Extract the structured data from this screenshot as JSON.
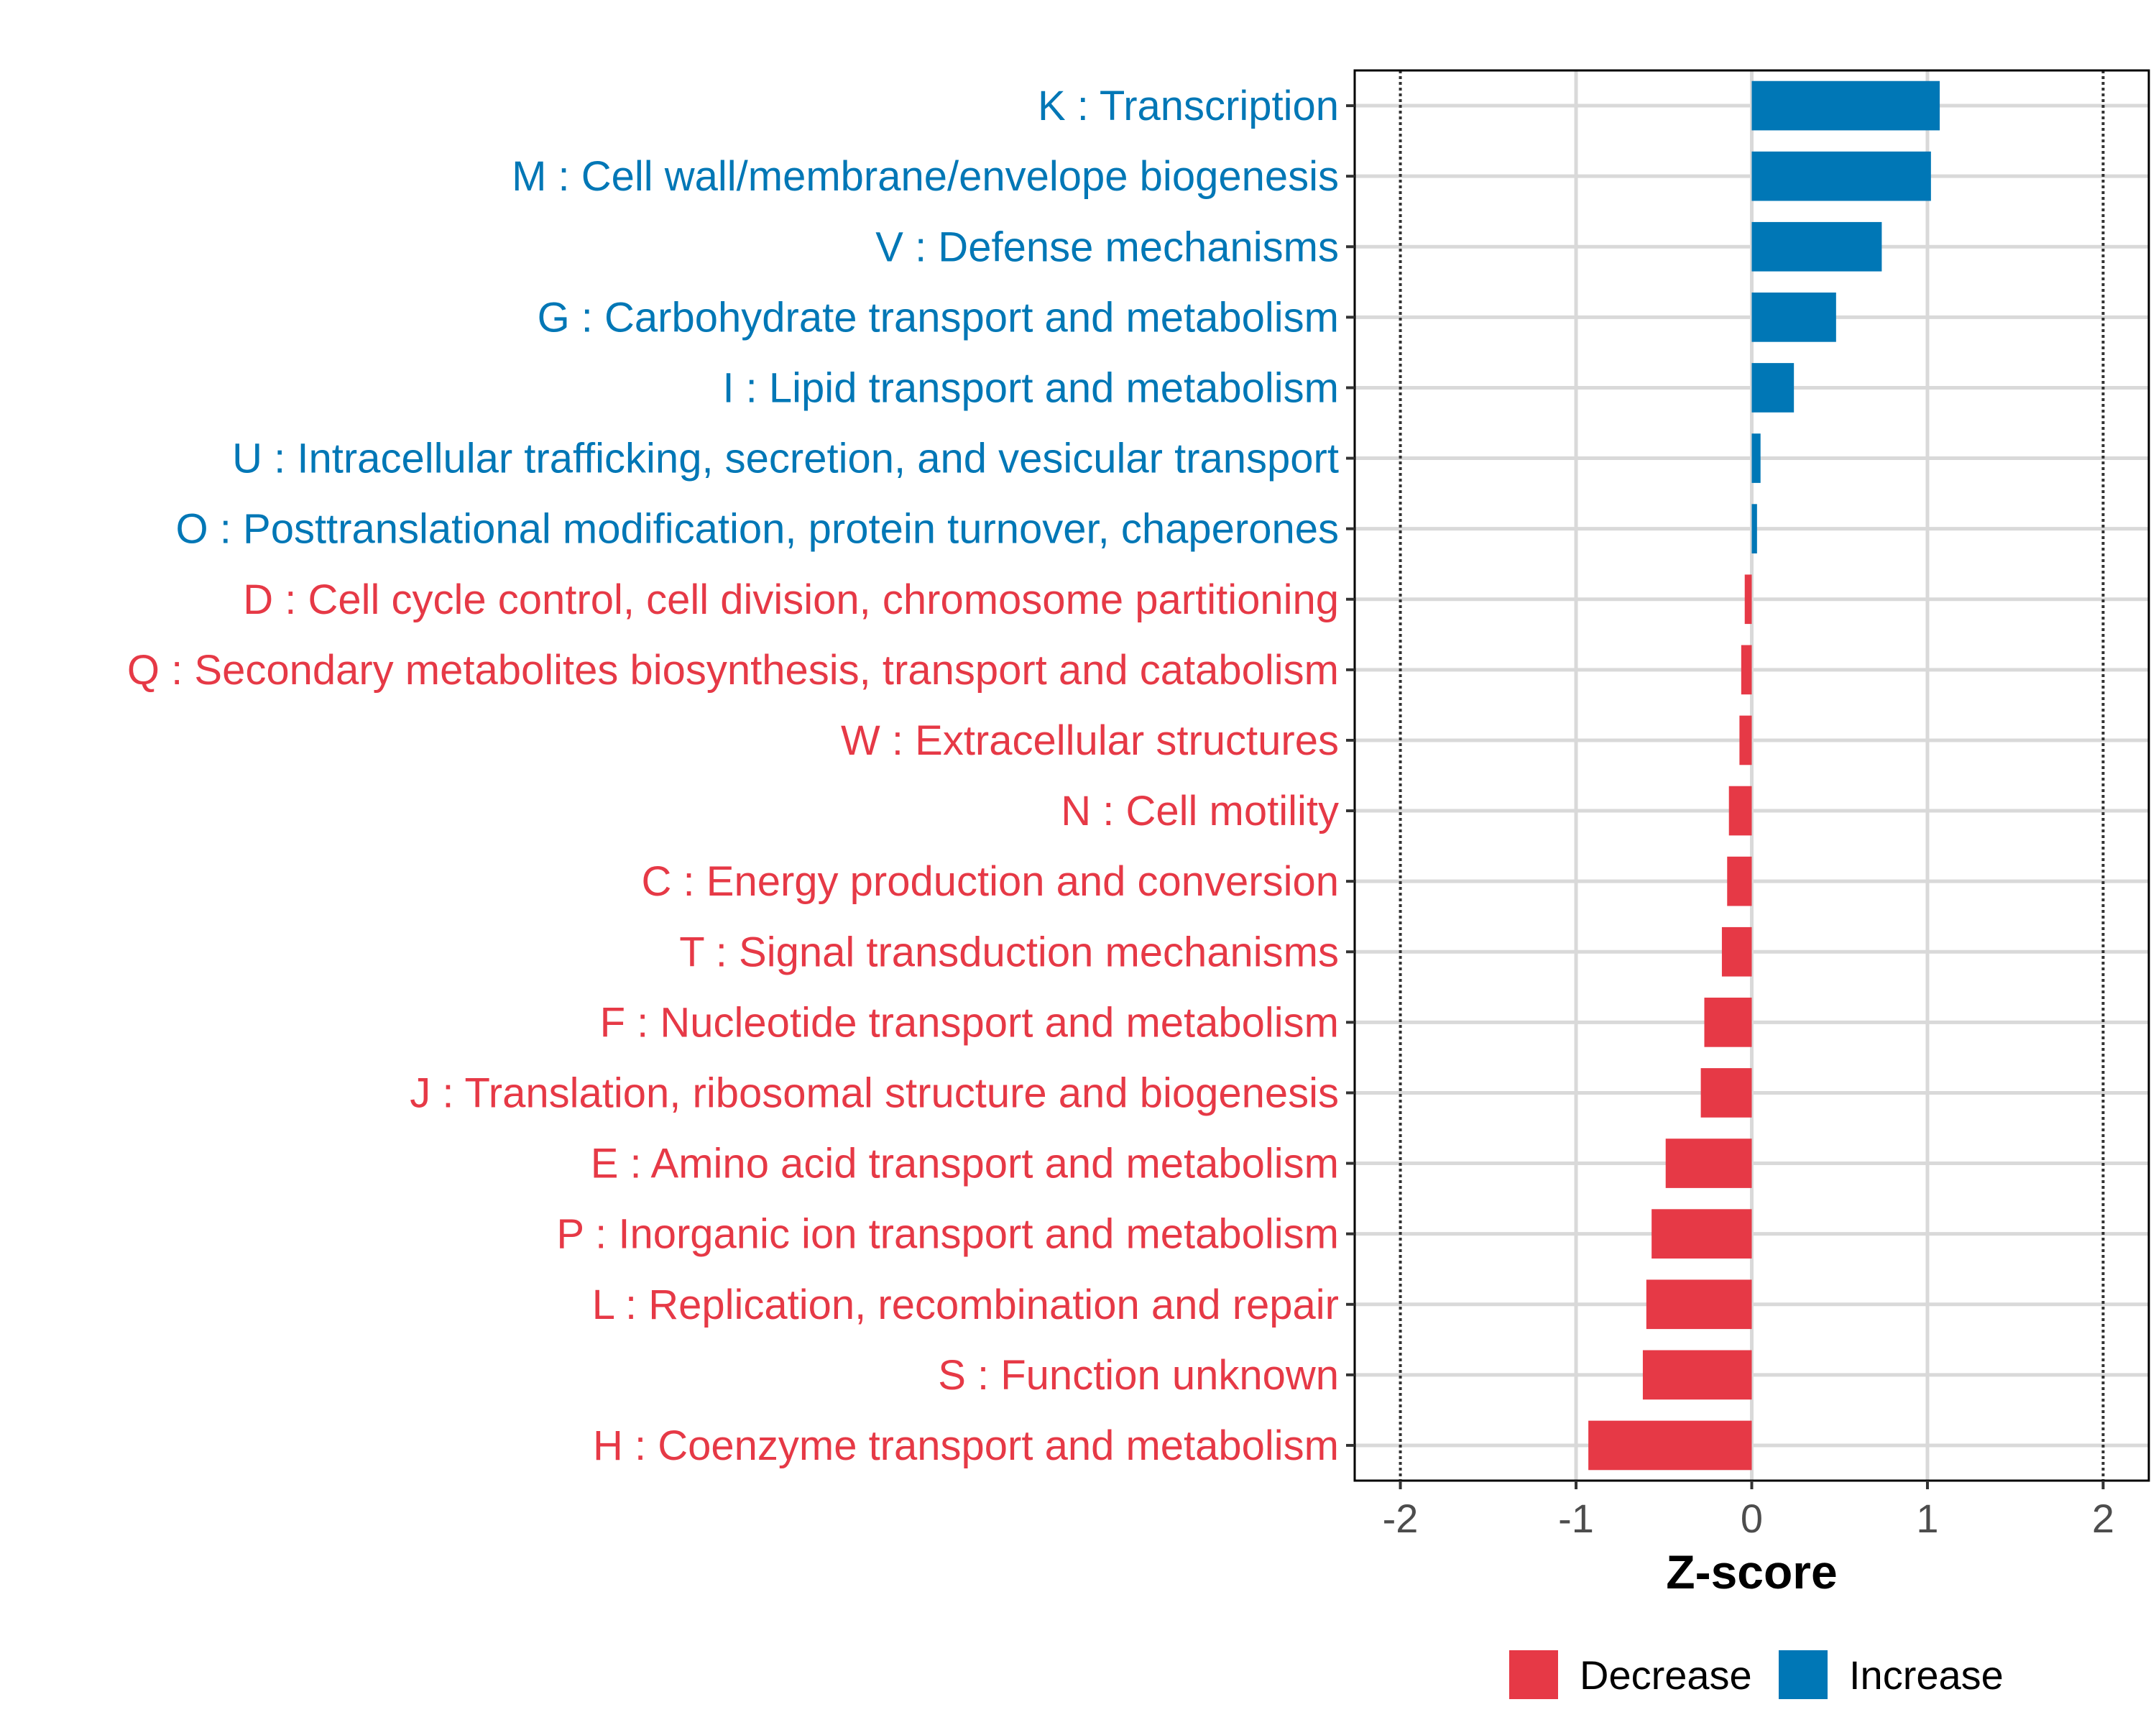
{
  "chart_data": {
    "type": "bar",
    "orientation": "horizontal",
    "title": "",
    "xlabel": "Z-score",
    "ylabel": "",
    "xlim": [
      -2.26,
      2.26
    ],
    "xticks": [
      -2,
      -1,
      0,
      1,
      2
    ],
    "xtick_labels": [
      "-2",
      "-1",
      "0",
      "1",
      "2"
    ],
    "reference_lines": [
      -2,
      2
    ],
    "grid": true,
    "colors": {
      "Decrease": "#e63946",
      "Increase": "#0077b6"
    },
    "categories": [
      "K : Transcription",
      "M : Cell wall/membrane/envelope biogenesis",
      "V : Defense mechanisms",
      "G : Carbohydrate transport and metabolism",
      "I : Lipid transport and metabolism",
      "U : Intracellular trafficking, secretion, and vesicular transport",
      "O : Posttranslational modification, protein turnover, chaperones",
      "D : Cell cycle control, cell division, chromosome partitioning",
      "Q : Secondary metabolites biosynthesis, transport and catabolism",
      "W : Extracellular structures",
      "N : Cell motility",
      "C : Energy production and conversion",
      "T : Signal transduction mechanisms",
      "F : Nucleotide transport and metabolism",
      "J : Translation, ribosomal structure and biogenesis",
      "E : Amino acid transport and metabolism",
      "P : Inorganic ion transport and metabolism",
      "L : Replication, recombination and repair",
      "S : Function unknown",
      "H : Coenzyme transport and metabolism"
    ],
    "values": [
      1.07,
      1.02,
      0.74,
      0.48,
      0.24,
      0.05,
      0.03,
      -0.04,
      -0.06,
      -0.07,
      -0.13,
      -0.14,
      -0.17,
      -0.27,
      -0.29,
      -0.49,
      -0.57,
      -0.6,
      -0.62,
      -0.93
    ],
    "groups": [
      "Increase",
      "Increase",
      "Increase",
      "Increase",
      "Increase",
      "Increase",
      "Increase",
      "Decrease",
      "Decrease",
      "Decrease",
      "Decrease",
      "Decrease",
      "Decrease",
      "Decrease",
      "Decrease",
      "Decrease",
      "Decrease",
      "Decrease",
      "Decrease",
      "Decrease"
    ],
    "legend": {
      "position": "bottom",
      "entries": [
        {
          "label": "Decrease",
          "color": "#e63946"
        },
        {
          "label": "Increase",
          "color": "#0077b6"
        }
      ]
    }
  }
}
